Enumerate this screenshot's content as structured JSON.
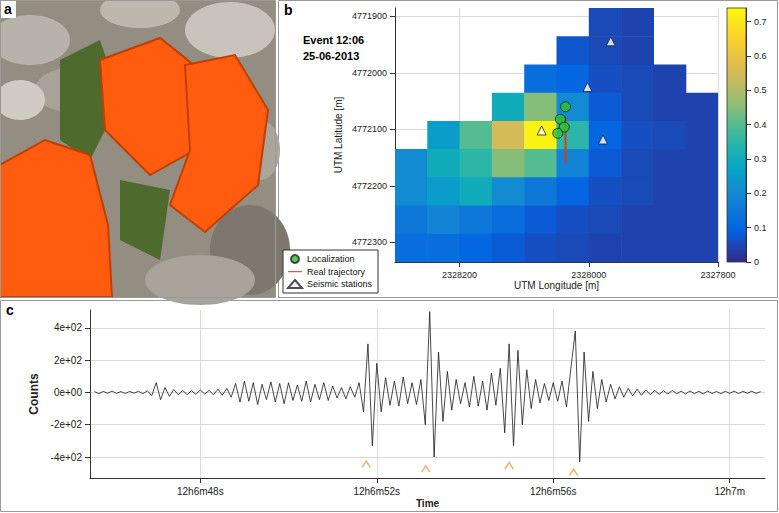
{
  "chart_data": [
    {
      "panel": "a",
      "type": "photo"
    },
    {
      "panel": "b",
      "type": "heatmap",
      "title": "Event 12:06",
      "subtitle": "25-06-2013",
      "x_label": "UTM Longitude [m]",
      "y_label": "UTM Latitude [m]",
      "xlim": [
        2328300,
        2327800
      ],
      "ylim": [
        4772335,
        4771885
      ],
      "xticks": [
        2328200,
        2328000,
        2327800
      ],
      "yticks": [
        4771900,
        4772000,
        4772100,
        4772200,
        4772300
      ],
      "grid": true,
      "legend": "lower left",
      "x": [
        2328275,
        2328225,
        2328175,
        2328125,
        2328075,
        2328025,
        2327975,
        2327925,
        2327875,
        2327825
      ],
      "y": [
        4771910,
        4771960,
        4772010,
        4772060,
        4772110,
        4772160,
        4772210,
        4772260,
        4772310
      ],
      "cells": [
        [
          null,
          null,
          null,
          null,
          null,
          null,
          0.05,
          0.04,
          null,
          null
        ],
        [
          null,
          null,
          null,
          null,
          null,
          0.07,
          0.05,
          0.04,
          null,
          null
        ],
        [
          null,
          null,
          null,
          null,
          0.12,
          0.1,
          0.06,
          0.05,
          0.04,
          null
        ],
        [
          null,
          null,
          null,
          0.3,
          0.45,
          0.2,
          0.08,
          0.05,
          0.04,
          0.04
        ],
        [
          null,
          0.25,
          0.4,
          0.55,
          0.72,
          0.35,
          0.1,
          0.06,
          0.05,
          0.04
        ],
        [
          0.2,
          0.3,
          0.35,
          0.45,
          0.4,
          0.18,
          0.08,
          0.05,
          0.04,
          0.04
        ],
        [
          0.2,
          0.25,
          0.3,
          0.2,
          0.15,
          0.1,
          0.06,
          0.05,
          0.04,
          0.04
        ],
        [
          0.15,
          0.18,
          0.15,
          0.12,
          0.08,
          0.06,
          0.05,
          0.04,
          0.04,
          0.04
        ],
        [
          0.12,
          0.12,
          0.1,
          0.08,
          0.06,
          0.05,
          0.04,
          0.04,
          0.04,
          0.04
        ]
      ],
      "colorbar": {
        "range": [
          0,
          0.74
        ],
        "ticks": [
          0,
          0.1,
          0.2,
          0.3,
          0.4,
          0.5,
          0.6,
          0.7
        ],
        "colors": [
          "#352a87",
          "#0363e1",
          "#1485d4",
          "#06a7c6",
          "#38b99e",
          "#92bf73",
          "#d9ba56",
          "#fcce2e",
          "#f9fb0e"
        ]
      },
      "series": [
        {
          "name": "Localization",
          "type": "scatter",
          "marker": "circle",
          "color": "#2bc42b",
          "x": [
            2328036,
            2328044,
            2328038,
            2328048
          ],
          "y": [
            4772060,
            4772082,
            4772096,
            4772107
          ]
        },
        {
          "name": "Real trajectory",
          "type": "line",
          "color": "#d2401a",
          "x": [
            2328036,
            2328036
          ],
          "y": [
            4772079,
            4772160
          ]
        },
        {
          "name": "Seismic stations",
          "type": "scatter",
          "marker": "triangle",
          "color": "#ffffff",
          "x": [
            2327966,
            2328002,
            2328073,
            2327978
          ],
          "y": [
            4771944,
            4772025,
            4772102,
            4772118
          ]
        }
      ]
    },
    {
      "panel": "c",
      "type": "line",
      "x_label": "Time",
      "y_label": "Counts",
      "xlim": [
        45.5,
        60.8
      ],
      "ylim": [
        -530,
        510
      ],
      "xticks": [
        {
          "value": 48,
          "label": "12h6m48s"
        },
        {
          "value": 52,
          "label": "12h6m52s"
        },
        {
          "value": 56,
          "label": "12h6m56s"
        },
        {
          "value": 60,
          "label": "12h7m"
        }
      ],
      "yticks": [
        {
          "value": -400,
          "label": "-4e+02"
        },
        {
          "value": -200,
          "label": "-2e+02"
        },
        {
          "value": 0,
          "label": "0e+00"
        },
        {
          "value": 200,
          "label": "2e+02"
        },
        {
          "value": 400,
          "label": "4e+02"
        }
      ],
      "grid": true,
      "color": "#1a1a1a",
      "x": [
        45.6,
        45.7,
        45.8,
        45.9,
        46.0,
        46.1,
        46.2,
        46.3,
        46.4,
        46.5,
        46.6,
        46.7,
        46.8,
        46.9,
        47.0,
        47.1,
        47.2,
        47.3,
        47.4,
        47.5,
        47.6,
        47.7,
        47.8,
        47.9,
        48.0,
        48.1,
        48.2,
        48.3,
        48.4,
        48.5,
        48.6,
        48.7,
        48.8,
        48.9,
        49.0,
        49.1,
        49.2,
        49.3,
        49.4,
        49.5,
        49.6,
        49.7,
        49.8,
        49.9,
        50.0,
        50.1,
        50.2,
        50.3,
        50.4,
        50.5,
        50.6,
        50.7,
        50.8,
        50.9,
        51.0,
        51.1,
        51.2,
        51.3,
        51.4,
        51.5,
        51.6,
        51.7,
        51.8,
        51.9,
        52.0,
        52.1,
        52.2,
        52.3,
        52.4,
        52.5,
        52.6,
        52.7,
        52.8,
        52.9,
        53.0,
        53.1,
        53.2,
        53.3,
        53.4,
        53.5,
        53.6,
        53.7,
        53.8,
        53.9,
        54.0,
        54.1,
        54.2,
        54.3,
        54.4,
        54.5,
        54.6,
        54.7,
        54.8,
        54.9,
        55.0,
        55.1,
        55.2,
        55.3,
        55.4,
        55.5,
        55.6,
        55.7,
        55.8,
        55.9,
        56.0,
        56.1,
        56.2,
        56.3,
        56.4,
        56.5,
        56.6,
        56.7,
        56.8,
        56.9,
        57.0,
        57.1,
        57.2,
        57.3,
        57.4,
        57.5,
        57.6,
        57.7,
        57.8,
        57.9,
        58.0,
        58.1,
        58.2,
        58.3,
        58.4,
        58.5,
        58.6,
        58.7,
        58.8,
        58.9,
        59.0,
        59.1,
        59.2,
        59.3,
        59.4,
        59.5,
        59.6,
        59.7,
        59.8,
        59.9,
        60.0,
        60.1,
        60.2,
        60.3,
        60.4,
        60.5,
        60.6,
        60.7
      ],
      "values": [
        5,
        -8,
        6,
        -5,
        8,
        -6,
        5,
        -7,
        6,
        -5,
        7,
        -8,
        10,
        -20,
        60,
        -45,
        30,
        -25,
        18,
        -15,
        12,
        -14,
        10,
        -12,
        15,
        -10,
        12,
        -15,
        20,
        -18,
        25,
        -30,
        55,
        -60,
        70,
        -55,
        60,
        -75,
        50,
        -45,
        65,
        -60,
        55,
        -70,
        60,
        -50,
        45,
        -55,
        70,
        -60,
        50,
        -45,
        60,
        -50,
        40,
        -35,
        30,
        -40,
        35,
        -30,
        60,
        -120,
        300,
        -330,
        180,
        -120,
        90,
        -80,
        70,
        -85,
        95,
        -70,
        60,
        -75,
        80,
        -200,
        500,
        -400,
        250,
        -180,
        130,
        -110,
        80,
        -70,
        60,
        -90,
        100,
        -85,
        70,
        -110,
        120,
        -80,
        150,
        -250,
        300,
        -330,
        260,
        -200,
        140,
        -100,
        80,
        -65,
        55,
        -50,
        60,
        -55,
        70,
        -90,
        150,
        380,
        -430,
        250,
        -180,
        130,
        -100,
        80,
        -60,
        50,
        -40,
        35,
        -30,
        25,
        -22,
        20,
        -18,
        15,
        -14,
        12,
        -12,
        10,
        -10,
        12,
        -9,
        8,
        -10,
        9,
        -8,
        7,
        -9,
        8,
        -7,
        6,
        -8,
        7,
        -6,
        8,
        -7,
        6,
        -5,
        7,
        -6,
        5
      ],
      "picks": {
        "marker": "caret",
        "color": "#f0a050",
        "x": [
          51.76,
          53.11,
          55.0,
          56.46
        ],
        "y": [
          -440,
          -470,
          -450,
          -490
        ]
      }
    }
  ]
}
